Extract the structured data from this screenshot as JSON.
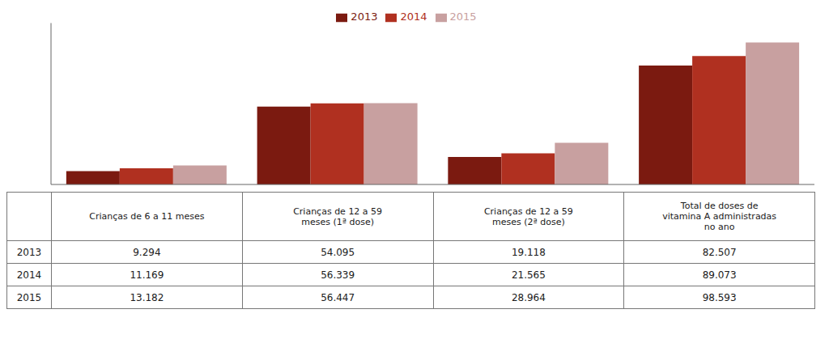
{
  "chart_data": {
    "type": "bar",
    "categories": [
      "Crianças de 6 a 11 meses",
      "Crianças de 12 a 59\nmeses (1ª dose)",
      "Crianças de 12 a 59\nmeses (2ª dose)",
      "Total de doses de\nvitamina A administradas\nno ano"
    ],
    "series": [
      {
        "name": "2013",
        "color": "#7B1A10",
        "values": [
          9294,
          54095,
          19118,
          82507
        ],
        "value_labels": [
          "9.294",
          "54.095",
          "19.118",
          "82.507"
        ]
      },
      {
        "name": "2014",
        "color": "#B03020",
        "values": [
          11169,
          56339,
          21565,
          89073
        ],
        "value_labels": [
          "11.169",
          "56.339",
          "21.565",
          "89.073"
        ]
      },
      {
        "name": "2015",
        "color": "#C8A0A0",
        "values": [
          13182,
          56447,
          28964,
          98593
        ],
        "value_labels": [
          "13.182",
          "56.447",
          "28.964",
          "98.593"
        ]
      }
    ],
    "ylim": [
      0,
      112000
    ],
    "tick_labels": false,
    "grid": false,
    "legend": "top"
  }
}
